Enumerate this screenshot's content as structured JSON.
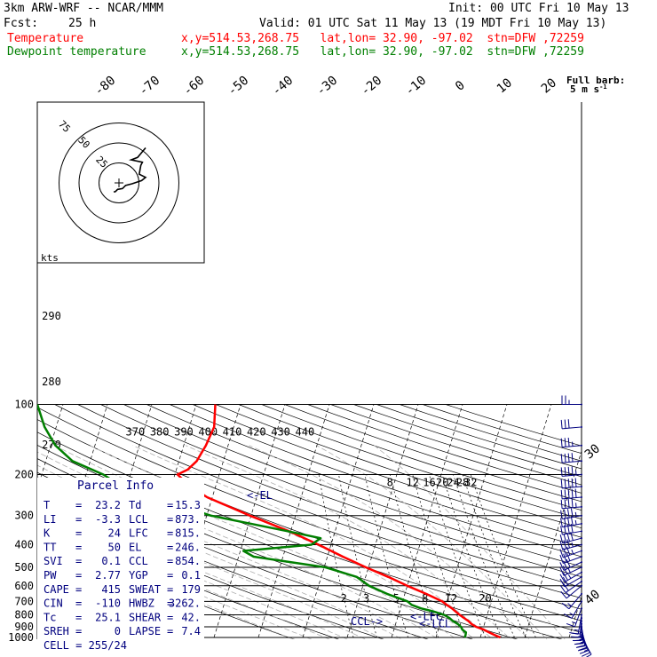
{
  "header": {
    "model": "3km ARW-WRF -- NCAR/MMM",
    "init": "Init: 00 UTC Fri 10 May 13",
    "fcst_label": "Fcst:",
    "fcst_value": "25 h",
    "valid": "Valid: 01 UTC Sat 11 May 13 (19 MDT Fri 10 May 13)"
  },
  "legend": [
    {
      "name": "Temperature",
      "info": "x,y=514.53,268.75   lat,lon= 32.90, -97.02  stn=DFW ,72259",
      "color": "#ff0000"
    },
    {
      "name": "Dewpoint temperature",
      "info": "x,y=514.53,268.75   lat,lon= 32.90, -97.02  stn=DFW ,72259",
      "color": "#007f00"
    }
  ],
  "barb_title": "Full barb:",
  "barb_units": "5 m s",
  "barb_units_exp": "-1",
  "hodo": {
    "units": "kts",
    "ring_labels": [
      "75",
      "50",
      "25"
    ]
  },
  "parcel": {
    "title": "Parcel Info",
    "rows": [
      {
        "l1": "T",
        "v1": "23.2",
        "l2": "Td",
        "v2": "15.3"
      },
      {
        "l1": "LI",
        "v1": "-3.3",
        "l2": "LCL",
        "v2": "873."
      },
      {
        "l1": "K",
        "v1": "24",
        "l2": "LFC",
        "v2": "815."
      },
      {
        "l1": "TT",
        "v1": "50",
        "l2": "EL",
        "v2": "246."
      },
      {
        "l1": "SVI",
        "v1": "0.1",
        "l2": "CCL",
        "v2": "854."
      },
      {
        "l1": "PW",
        "v1": "2.77",
        "l2": "YGP",
        "v2": "0.1"
      },
      {
        "l1": "CAPE",
        "v1": "415",
        "l2": "SWEAT",
        "v2": "179"
      },
      {
        "l1": "CIN",
        "v1": "-110",
        "l2": "HWBZ",
        "v2": "3262."
      },
      {
        "l1": "Tc",
        "v1": "25.1",
        "l2": "SHEAR",
        "v2": "42."
      },
      {
        "l1": "SREH",
        "v1": "0",
        "l2": "LAPSE",
        "v2": "7.4"
      }
    ],
    "cell": "CELL = 255/24"
  },
  "colors": {
    "temperature": "#ff0000",
    "dewpoint": "#007f00",
    "parcel_text": "#00007f",
    "grid": "#000000",
    "moist_adiabat": "#b0b0b0"
  },
  "chart_data": {
    "type": "line",
    "y_axis": "pressure",
    "y_scale": "log",
    "pressure_levels": [
      100,
      200,
      300,
      400,
      500,
      600,
      700,
      800,
      900,
      1000
    ],
    "ylim": [
      1000,
      100
    ],
    "temperature_labels": [
      "-80",
      "-70",
      "-60",
      "-50",
      "-40",
      "-30",
      "-20",
      "-10",
      "0",
      "10",
      "20",
      "30",
      "40"
    ],
    "theta_labels": [
      "370",
      "380",
      "390",
      "400",
      "410",
      "420",
      "430",
      "440"
    ],
    "theta_left_labels": [
      "290",
      "280",
      "270"
    ],
    "mixing_ratio_labels_top": [
      "8",
      "12",
      "16",
      "20",
      "24",
      "28",
      "32"
    ],
    "mixing_ratio_labels_bottom": [
      "2",
      "3",
      "5",
      "8",
      "12",
      "20"
    ],
    "annotations": [
      "<-EL",
      "<-LFC",
      "<-LCL",
      "CCL->"
    ],
    "series": [
      {
        "name": "Temperature",
        "unit": "C",
        "points": [
          [
            1000,
            24.5
          ],
          [
            975,
            23.0
          ],
          [
            950,
            21.6
          ],
          [
            925,
            20.2
          ],
          [
            900,
            18.3
          ],
          [
            875,
            17.1
          ],
          [
            850,
            16.2
          ],
          [
            825,
            15.0
          ],
          [
            800,
            13.8
          ],
          [
            775,
            12.7
          ],
          [
            750,
            11.6
          ],
          [
            725,
            10.2
          ],
          [
            700,
            8.9
          ],
          [
            650,
            4.8
          ],
          [
            600,
            0.0
          ],
          [
            550,
            -4.9
          ],
          [
            500,
            -10.6
          ],
          [
            450,
            -16.5
          ],
          [
            400,
            -22.8
          ],
          [
            350,
            -30.4
          ],
          [
            300,
            -40.3
          ],
          [
            250,
            -51.2
          ],
          [
            225,
            -55.6
          ],
          [
            200,
            -59.4
          ],
          [
            190,
            -57.4
          ],
          [
            175,
            -56.0
          ],
          [
            150,
            -55.0
          ],
          [
            125,
            -54.4
          ],
          [
            100,
            -55.7
          ]
        ]
      },
      {
        "name": "Dewpoint temperature",
        "unit": "C",
        "points": [
          [
            1000,
            16.5
          ],
          [
            975,
            16.5
          ],
          [
            950,
            16.4
          ],
          [
            925,
            15.4
          ],
          [
            900,
            14.9
          ],
          [
            875,
            14.0
          ],
          [
            850,
            12.7
          ],
          [
            825,
            11.7
          ],
          [
            800,
            10.3
          ],
          [
            775,
            7.8
          ],
          [
            750,
            4.6
          ],
          [
            725,
            2.3
          ],
          [
            700,
            1.1
          ],
          [
            650,
            -4.0
          ],
          [
            600,
            -8.6
          ],
          [
            550,
            -12.0
          ],
          [
            500,
            -19.7
          ],
          [
            450,
            -36.6
          ],
          [
            425,
            -39.3
          ],
          [
            400,
            -24.4
          ],
          [
            375,
            -22.8
          ],
          [
            350,
            -30.7
          ],
          [
            300,
            -49.1
          ],
          [
            250,
            -63.1
          ],
          [
            225,
            -71.1
          ],
          [
            200,
            -76.1
          ],
          [
            175,
            -84.0
          ],
          [
            150,
            -88.9
          ],
          [
            125,
            -92.6
          ],
          [
            100,
            -95.8
          ]
        ]
      }
    ],
    "hodograph": {
      "unit": "kts",
      "rings": [
        25,
        50,
        75
      ],
      "points": [
        [
          0,
          0
        ],
        [
          2,
          0
        ],
        [
          5,
          3
        ],
        [
          11,
          4
        ],
        [
          15,
          8
        ],
        [
          23,
          10
        ],
        [
          35,
          14
        ],
        [
          40,
          18
        ],
        [
          32,
          22
        ],
        [
          34,
          33
        ],
        [
          36,
          37
        ],
        [
          22,
          40
        ],
        [
          30,
          43
        ],
        [
          40,
          55
        ]
      ]
    },
    "wind_barbs": [
      {
        "p": 1000,
        "dir": 150,
        "spd": 10
      },
      {
        "p": 975,
        "dir": 155,
        "spd": 15
      },
      {
        "p": 950,
        "dir": 160,
        "spd": 20
      },
      {
        "p": 925,
        "dir": 165,
        "spd": 25
      },
      {
        "p": 900,
        "dir": 170,
        "spd": 25
      },
      {
        "p": 875,
        "dir": 175,
        "spd": 25
      },
      {
        "p": 850,
        "dir": 180,
        "spd": 20
      },
      {
        "p": 825,
        "dir": 185,
        "spd": 20
      },
      {
        "p": 800,
        "dir": 190,
        "spd": 15
      },
      {
        "p": 750,
        "dir": 200,
        "spd": 15
      },
      {
        "p": 700,
        "dir": 210,
        "spd": 15
      },
      {
        "p": 650,
        "dir": 220,
        "spd": 15
      },
      {
        "p": 600,
        "dir": 230,
        "spd": 15
      },
      {
        "p": 575,
        "dir": 235,
        "spd": 20
      },
      {
        "p": 550,
        "dir": 240,
        "spd": 20
      },
      {
        "p": 525,
        "dir": 240,
        "spd": 25
      },
      {
        "p": 500,
        "dir": 245,
        "spd": 25
      },
      {
        "p": 475,
        "dir": 245,
        "spd": 30
      },
      {
        "p": 450,
        "dir": 250,
        "spd": 30
      },
      {
        "p": 425,
        "dir": 250,
        "spd": 35
      },
      {
        "p": 400,
        "dir": 255,
        "spd": 35
      },
      {
        "p": 375,
        "dir": 255,
        "spd": 40
      },
      {
        "p": 350,
        "dir": 260,
        "spd": 40
      },
      {
        "p": 325,
        "dir": 260,
        "spd": 45
      },
      {
        "p": 300,
        "dir": 260,
        "spd": 45
      },
      {
        "p": 275,
        "dir": 265,
        "spd": 45
      },
      {
        "p": 250,
        "dir": 265,
        "spd": 50
      },
      {
        "p": 225,
        "dir": 265,
        "spd": 50
      },
      {
        "p": 200,
        "dir": 265,
        "spd": 45
      },
      {
        "p": 175,
        "dir": 265,
        "spd": 40
      },
      {
        "p": 150,
        "dir": 265,
        "spd": 35
      },
      {
        "p": 125,
        "dir": 265,
        "spd": 30
      },
      {
        "p": 100,
        "dir": 270,
        "spd": 25
      }
    ]
  }
}
